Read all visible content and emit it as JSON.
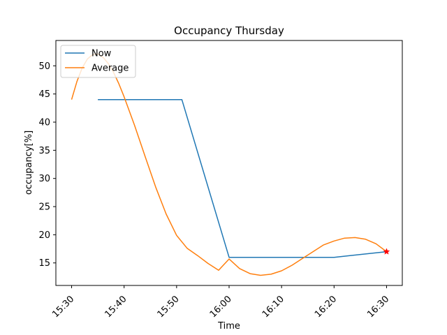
{
  "chart_data": {
    "type": "line",
    "title": "Occupancy Thursday",
    "xlabel": "Time",
    "ylabel": "occupancy[%]",
    "x_ticks": [
      "15:30",
      "15:40",
      "15:50",
      "16:00",
      "16:10",
      "16:20",
      "16:30"
    ],
    "y_ticks": [
      15,
      20,
      25,
      30,
      35,
      40,
      45,
      50
    ],
    "xlim": [
      "15:27",
      "16:33"
    ],
    "ylim": [
      11,
      54.5
    ],
    "grid": false,
    "legend": "top-left",
    "series": [
      {
        "name": "Now",
        "color": "#1f77b4",
        "points": [
          [
            "15:35",
            44
          ],
          [
            "15:51",
            44
          ],
          [
            "16:00",
            16
          ],
          [
            "16:20",
            16
          ],
          [
            "16:30",
            17
          ]
        ]
      },
      {
        "name": "Average",
        "color": "#ff7f0e",
        "points": [
          [
            "15:30",
            44
          ],
          [
            "15:31",
            47.2
          ],
          [
            "15:32",
            49.6
          ],
          [
            "15:33",
            51.2
          ],
          [
            "15:34",
            52
          ],
          [
            "15:35",
            52.1
          ],
          [
            "15:36",
            51.5
          ],
          [
            "15:37",
            50.4
          ],
          [
            "15:38",
            48.8
          ],
          [
            "15:39",
            46.8
          ],
          [
            "15:40",
            44.5
          ],
          [
            "15:42",
            39.4
          ],
          [
            "15:44",
            33.9
          ],
          [
            "15:46",
            28.5
          ],
          [
            "15:48",
            23.7
          ],
          [
            "15:50",
            19.9
          ],
          [
            "15:52",
            17.6
          ],
          [
            "15:54",
            16.3
          ],
          [
            "15:56",
            14.9
          ],
          [
            "15:58",
            13.7
          ],
          [
            "16:00",
            15.7
          ],
          [
            "16:02",
            14
          ],
          [
            "16:04",
            13.1
          ],
          [
            "16:06",
            12.8
          ],
          [
            "16:08",
            13
          ],
          [
            "16:10",
            13.6
          ],
          [
            "16:12",
            14.6
          ],
          [
            "16:14",
            15.8
          ],
          [
            "16:16",
            17
          ],
          [
            "16:18",
            18.2
          ],
          [
            "16:20",
            18.9
          ],
          [
            "16:22",
            19.4
          ],
          [
            "16:24",
            19.5
          ],
          [
            "16:26",
            19.2
          ],
          [
            "16:28",
            18.4
          ],
          [
            "16:30",
            17
          ]
        ]
      }
    ],
    "marker": {
      "x": "16:30",
      "y": 17,
      "symbol": "star",
      "color": "#ff0000"
    }
  }
}
